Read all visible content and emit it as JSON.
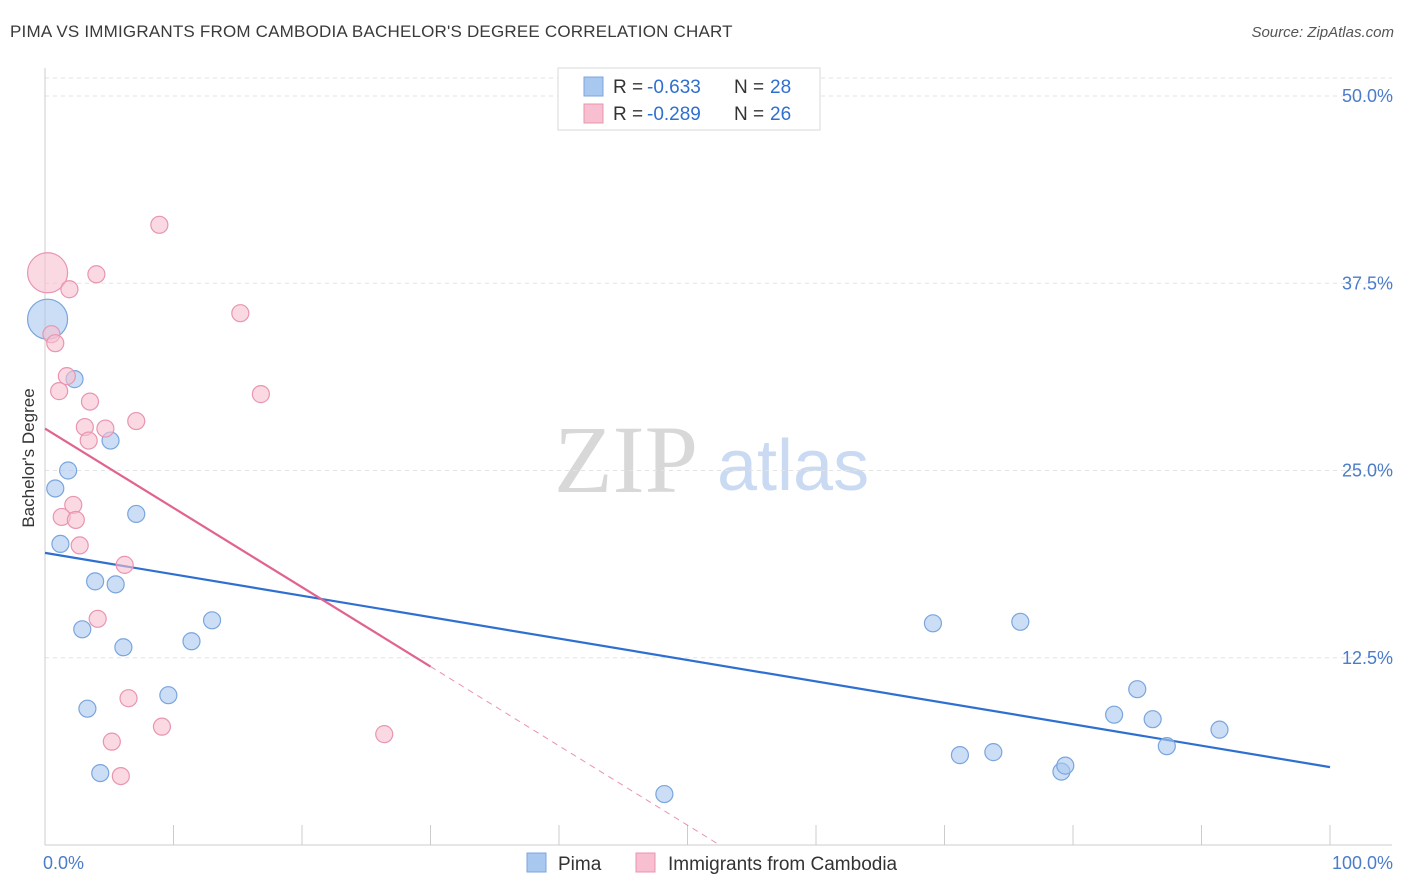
{
  "title": "PIMA VS IMMIGRANTS FROM CAMBODIA BACHELOR'S DEGREE CORRELATION CHART",
  "source": "Source: ZipAtlas.com",
  "watermark": {
    "zip": "ZIP",
    "atlas": "atlas"
  },
  "chart_data": {
    "type": "scatter",
    "ylabel": "Bachelor's Degree",
    "xlim": [
      0,
      100
    ],
    "ylim": [
      0,
      50
    ],
    "x_tick_labels": [
      {
        "value": 0,
        "label": "0.0%"
      },
      {
        "value": 100,
        "label": "100.0%"
      }
    ],
    "y_tick_labels": [
      {
        "value": 12.5,
        "label": "12.5%"
      },
      {
        "value": 25,
        "label": "25.0%"
      },
      {
        "value": 37.5,
        "label": "37.5%"
      },
      {
        "value": 50,
        "label": "50.0%"
      }
    ],
    "grid": "horizontal dashed",
    "legend_position": "top-center",
    "legend_r_label": "R = ",
    "legend_n_label": "N = ",
    "series": [
      {
        "name": "Pima",
        "color": "#a8c8f0",
        "stroke": "#7aa5de",
        "line_color": "#2f6fd0",
        "r": "-0.633",
        "n": "28",
        "trend": {
          "x0": 0,
          "y0": 19.5,
          "x1": 100,
          "y1": 5.2,
          "solid_until": 100
        },
        "points": [
          {
            "x": 0.2,
            "y": 35.1,
            "big": true
          },
          {
            "x": 2.3,
            "y": 31.1
          },
          {
            "x": 5.1,
            "y": 27.0
          },
          {
            "x": 1.8,
            "y": 25.0
          },
          {
            "x": 0.8,
            "y": 23.8
          },
          {
            "x": 7.1,
            "y": 22.1
          },
          {
            "x": 1.2,
            "y": 20.1
          },
          {
            "x": 3.9,
            "y": 17.6
          },
          {
            "x": 5.5,
            "y": 17.4
          },
          {
            "x": 13.0,
            "y": 15.0
          },
          {
            "x": 2.9,
            "y": 14.4
          },
          {
            "x": 11.4,
            "y": 13.6
          },
          {
            "x": 6.1,
            "y": 13.2
          },
          {
            "x": 9.6,
            "y": 10.0
          },
          {
            "x": 3.3,
            "y": 9.1
          },
          {
            "x": 4.3,
            "y": 4.8
          },
          {
            "x": 48.2,
            "y": 3.4
          },
          {
            "x": 69.1,
            "y": 14.8
          },
          {
            "x": 75.9,
            "y": 14.9
          },
          {
            "x": 71.2,
            "y": 6.0
          },
          {
            "x": 73.8,
            "y": 6.2
          },
          {
            "x": 79.1,
            "y": 4.9
          },
          {
            "x": 79.4,
            "y": 5.3
          },
          {
            "x": 85.0,
            "y": 10.4
          },
          {
            "x": 83.2,
            "y": 8.7
          },
          {
            "x": 86.2,
            "y": 8.4
          },
          {
            "x": 87.3,
            "y": 6.6
          },
          {
            "x": 91.4,
            "y": 7.7
          }
        ]
      },
      {
        "name": "Immigrants from Cambodia",
        "color": "#f8bfd0",
        "stroke": "#e895b0",
        "line_color": "#e0648f",
        "r": "-0.289",
        "n": "26",
        "trend": {
          "x0": 0,
          "y0": 27.8,
          "x1": 52.5,
          "y1": 0,
          "solid_until": 30
        },
        "points": [
          {
            "x": 0.2,
            "y": 38.2,
            "big": true
          },
          {
            "x": 8.9,
            "y": 41.4
          },
          {
            "x": 4.0,
            "y": 38.1
          },
          {
            "x": 1.9,
            "y": 37.1
          },
          {
            "x": 15.2,
            "y": 35.5
          },
          {
            "x": 0.5,
            "y": 34.1
          },
          {
            "x": 0.8,
            "y": 33.5
          },
          {
            "x": 1.7,
            "y": 31.3
          },
          {
            "x": 1.1,
            "y": 30.3
          },
          {
            "x": 16.8,
            "y": 30.1
          },
          {
            "x": 3.5,
            "y": 29.6
          },
          {
            "x": 7.1,
            "y": 28.3
          },
          {
            "x": 3.1,
            "y": 27.9
          },
          {
            "x": 4.7,
            "y": 27.8
          },
          {
            "x": 3.4,
            "y": 27.0
          },
          {
            "x": 2.2,
            "y": 22.7
          },
          {
            "x": 1.3,
            "y": 21.9
          },
          {
            "x": 2.4,
            "y": 21.7
          },
          {
            "x": 2.7,
            "y": 20.0
          },
          {
            "x": 6.2,
            "y": 18.7
          },
          {
            "x": 4.1,
            "y": 15.1
          },
          {
            "x": 6.5,
            "y": 9.8
          },
          {
            "x": 9.1,
            "y": 7.9
          },
          {
            "x": 26.4,
            "y": 7.4
          },
          {
            "x": 5.2,
            "y": 6.9
          },
          {
            "x": 5.9,
            "y": 4.6
          }
        ]
      }
    ]
  }
}
